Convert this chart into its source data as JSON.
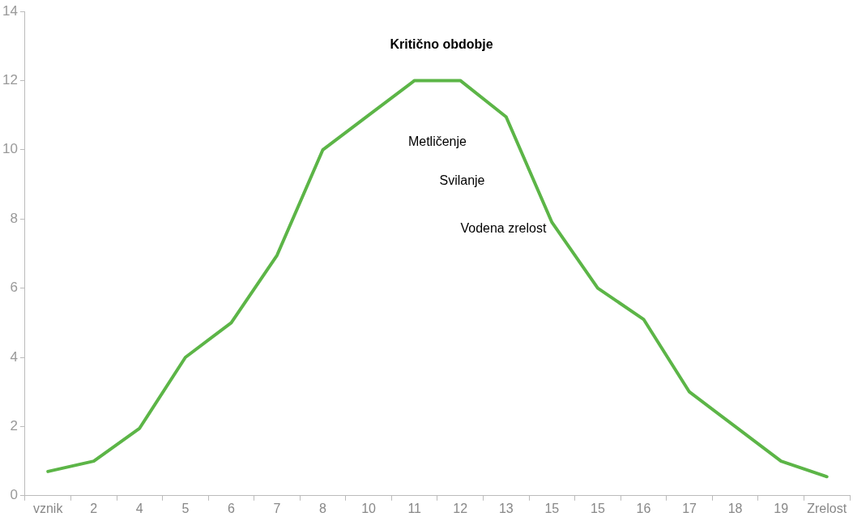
{
  "chart_data": {
    "type": "line",
    "categories": [
      "vznik",
      "2",
      "4",
      "5",
      "6",
      "7",
      "8",
      "10",
      "11",
      "12",
      "13",
      "15",
      "15",
      "16",
      "17",
      "18",
      "19",
      "Zrelost"
    ],
    "series": [
      {
        "color": "#5cb547",
        "values": [
          0.7,
          1.0,
          1.95,
          4.0,
          5.0,
          6.95,
          10.0,
          11.0,
          12.0,
          12.0,
          10.95,
          7.9,
          6.0,
          5.1,
          3.0,
          2.0,
          1.0,
          0.55
        ]
      }
    ],
    "ylim": [
      0,
      14
    ],
    "yticks": [
      0,
      2,
      4,
      6,
      8,
      10,
      12,
      14
    ],
    "annotations": [
      "Kritično obdobje",
      "Metličenje",
      "Svilanje",
      "Vodena zrelost"
    ],
    "grid": false,
    "legend": false,
    "marker": "none",
    "line_style": "solid"
  }
}
